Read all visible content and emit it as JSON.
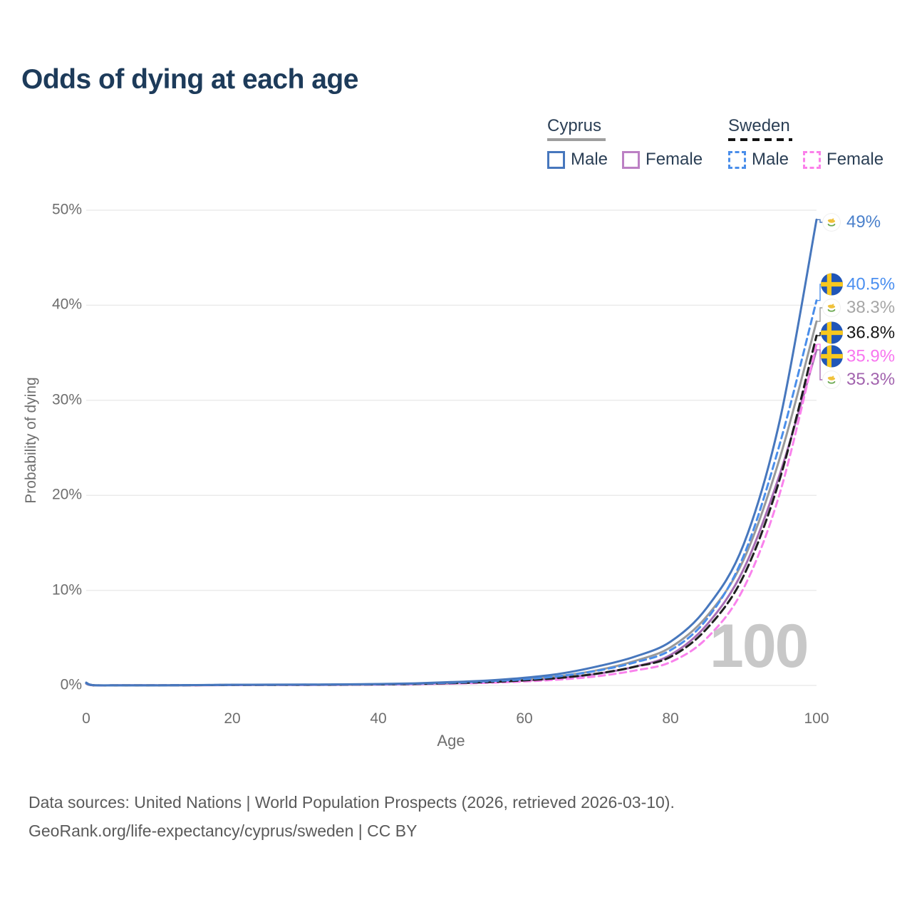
{
  "title": "Odds of dying at each age",
  "watermark": "100",
  "legend": {
    "groups": [
      {
        "name": "Cyprus",
        "line_style": "solid",
        "items": [
          {
            "label": "Male",
            "color": "#4777bd"
          },
          {
            "label": "Female",
            "color": "#bc80c4"
          }
        ]
      },
      {
        "name": "Sweden",
        "line_style": "dashed",
        "items": [
          {
            "label": "Male",
            "color": "#4a8eea"
          },
          {
            "label": "Female",
            "color": "#fb80ea"
          }
        ]
      }
    ]
  },
  "chart_data": {
    "type": "line",
    "xlabel": "Age",
    "ylabel": "Probability of dying",
    "xlim": [
      0,
      100
    ],
    "ylim": [
      0,
      50
    ],
    "grid": "horizontal",
    "legend_position": "top-right",
    "x_tick_values": [
      0,
      20,
      40,
      60,
      80,
      100
    ],
    "x_tick_labels": [
      "0",
      "20",
      "40",
      "60",
      "80",
      "100"
    ],
    "y_tick_values": [
      0,
      10,
      20,
      30,
      40,
      50
    ],
    "y_tick_labels": [
      "0%",
      "10%",
      "20%",
      "30%",
      "40%",
      "50%"
    ],
    "ages": [
      0,
      1,
      5,
      10,
      15,
      20,
      25,
      30,
      35,
      40,
      45,
      50,
      55,
      60,
      65,
      70,
      75,
      80,
      85,
      90,
      95,
      100
    ],
    "series": [
      {
        "name": "Cyprus Male",
        "country": "Cyprus",
        "flag": "cy",
        "color": "#4777bd",
        "dashed": false,
        "end_label": "49%",
        "end_value": 49.0,
        "label_color": "#4a80cb",
        "values": [
          0.3,
          0.03,
          0.01,
          0.01,
          0.04,
          0.07,
          0.08,
          0.09,
          0.11,
          0.15,
          0.22,
          0.35,
          0.52,
          0.8,
          1.25,
          2.0,
          3.0,
          4.6,
          8.2,
          14.8,
          28.0,
          49.0
        ]
      },
      {
        "name": "Sweden Male",
        "country": "Sweden",
        "flag": "se",
        "color": "#4a8eea",
        "dashed": true,
        "end_label": "40.5%",
        "end_value": 40.5,
        "label_color": "#4a8ff0",
        "values": [
          0.25,
          0.02,
          0.01,
          0.01,
          0.04,
          0.06,
          0.07,
          0.08,
          0.1,
          0.13,
          0.19,
          0.29,
          0.44,
          0.65,
          1.0,
          1.55,
          2.4,
          3.7,
          7.0,
          13.6,
          25.5,
          40.5
        ]
      },
      {
        "name": "Cyprus",
        "country": "Cyprus",
        "flag": "cy",
        "color": "#999999",
        "dashed": false,
        "end_label": "38.3%",
        "end_value": 38.3,
        "label_color": "#a6a6a6",
        "values": [
          0.27,
          0.02,
          0.01,
          0.01,
          0.03,
          0.05,
          0.06,
          0.07,
          0.09,
          0.12,
          0.18,
          0.28,
          0.43,
          0.65,
          1.0,
          1.6,
          2.55,
          4.0,
          7.3,
          13.2,
          24.0,
          38.3
        ]
      },
      {
        "name": "Sweden",
        "country": "Sweden",
        "flag": "se",
        "color": "#1f1f1f",
        "dashed": true,
        "end_label": "36.8%",
        "end_value": 36.8,
        "label_color": "#161616",
        "values": [
          0.22,
          0.02,
          0.01,
          0.01,
          0.03,
          0.05,
          0.06,
          0.07,
          0.08,
          0.11,
          0.16,
          0.24,
          0.36,
          0.53,
          0.8,
          1.25,
          1.95,
          3.0,
          6.0,
          11.5,
          21.8,
          36.8
        ]
      },
      {
        "name": "Sweden Female",
        "country": "Sweden",
        "flag": "se",
        "color": "#f982ec",
        "dashed": true,
        "end_label": "35.9%",
        "end_value": 35.9,
        "label_color": "#f875ef",
        "values": [
          0.2,
          0.01,
          0.01,
          0.01,
          0.02,
          0.04,
          0.05,
          0.06,
          0.07,
          0.09,
          0.13,
          0.19,
          0.28,
          0.42,
          0.63,
          0.97,
          1.55,
          2.45,
          5.0,
          10.2,
          20.3,
          35.9
        ]
      },
      {
        "name": "Cyprus Female",
        "country": "Cyprus",
        "flag": "cy",
        "color": "#a76db3",
        "dashed": false,
        "end_label": "35.3%",
        "end_value": 35.3,
        "label_color": "#a263ae",
        "values": [
          0.24,
          0.02,
          0.01,
          0.01,
          0.02,
          0.04,
          0.05,
          0.06,
          0.07,
          0.1,
          0.14,
          0.21,
          0.33,
          0.5,
          0.78,
          1.22,
          1.95,
          3.2,
          6.4,
          12.2,
          22.3,
          35.3
        ]
      }
    ],
    "watermark": "100"
  },
  "footer": {
    "line1": "Data sources: United Nations | World Population Prospects (2026, retrieved 2026-03-10).",
    "line2": "GeoRank.org/life-expectancy/cyprus/sweden | CC BY"
  }
}
